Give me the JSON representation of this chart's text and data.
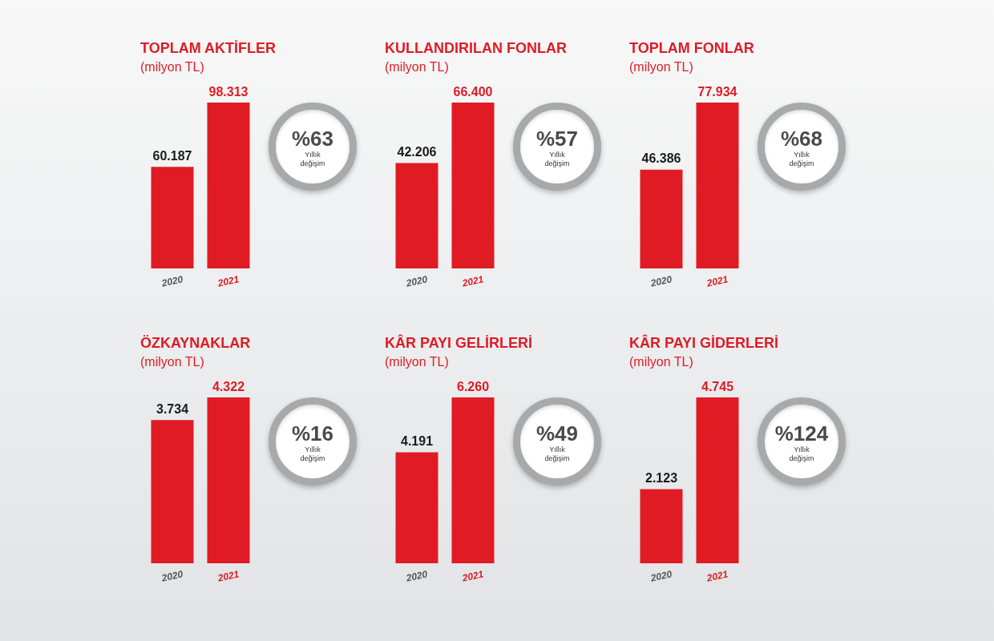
{
  "chart_data": [
    {
      "type": "bar",
      "title": "TOPLAM AKTİFLER",
      "subtitle": "(milyon TL)",
      "categories": [
        "2020",
        "2021"
      ],
      "values": [
        60187,
        98313
      ],
      "value_labels": [
        "60.187",
        "98.313"
      ],
      "color": "#e01b24",
      "annotations": [
        "%63",
        "Yıllık değişim"
      ]
    },
    {
      "type": "bar",
      "title": "KULLANDIRILAN FONLAR",
      "subtitle": "(milyon TL)",
      "categories": [
        "2020",
        "2021"
      ],
      "values": [
        42206,
        66400
      ],
      "value_labels": [
        "42.206",
        "66.400"
      ],
      "color": "#e01b24",
      "annotations": [
        "%57",
        "Yıllık değişim"
      ]
    },
    {
      "type": "bar",
      "title": "TOPLAM FONLAR",
      "subtitle": "(milyon TL)",
      "categories": [
        "2020",
        "2021"
      ],
      "values": [
        46386,
        77934
      ],
      "value_labels": [
        "46.386",
        "77.934"
      ],
      "color": "#e01b24",
      "annotations": [
        "%68",
        "Yıllık değişim"
      ]
    },
    {
      "type": "bar",
      "title": "ÖZKAYNAKLAR",
      "subtitle": "(milyon TL)",
      "categories": [
        "2020",
        "2021"
      ],
      "values": [
        3734,
        4322
      ],
      "value_labels": [
        "3.734",
        "4.322"
      ],
      "color": "#e01b24",
      "annotations": [
        "%16",
        "Yıllık değişim"
      ]
    },
    {
      "type": "bar",
      "title": "KÂR PAYI GELİRLERİ",
      "subtitle": "(milyon TL)",
      "categories": [
        "2020",
        "2021"
      ],
      "values": [
        4191,
        6260
      ],
      "value_labels": [
        "4.191",
        "6.260"
      ],
      "color": "#e01b24",
      "annotations": [
        "%49",
        "Yıllık değişim"
      ]
    },
    {
      "type": "bar",
      "title": "KÂR PAYI GİDERLERİ",
      "subtitle": "(milyon TL)",
      "categories": [
        "2020",
        "2021"
      ],
      "values": [
        2123,
        4745
      ],
      "value_labels": [
        "2.123",
        "4.745"
      ],
      "color": "#e01b24",
      "annotations": [
        "%124",
        "Yıllık değişim"
      ]
    }
  ]
}
